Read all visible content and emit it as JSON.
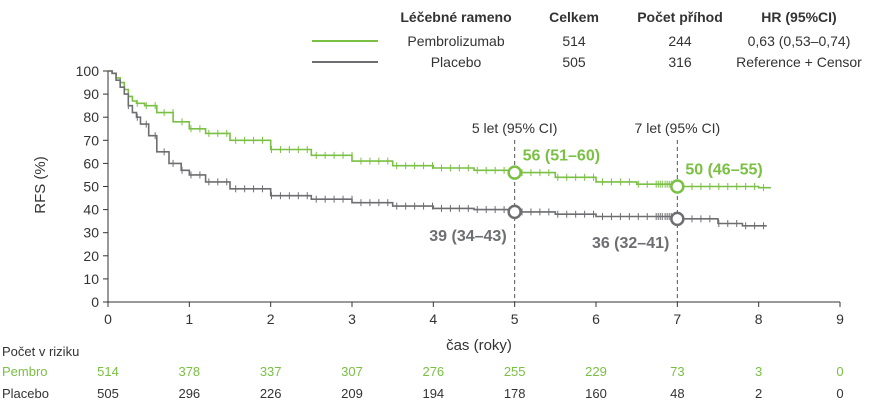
{
  "chart_data": {
    "type": "line",
    "subtype": "kaplan-meier",
    "ylabel": "RFS (%)",
    "xlabel": "čas (roky)",
    "xlim": [
      0,
      9
    ],
    "ylim": [
      0,
      100
    ],
    "xticks": [
      0,
      1,
      2,
      3,
      4,
      5,
      6,
      7,
      8,
      9
    ],
    "yticks": [
      0,
      10,
      20,
      30,
      40,
      50,
      60,
      70,
      80,
      90,
      100
    ],
    "colors": {
      "pembro": "#7ac043",
      "placebo": "#6d6e71",
      "axis": "#333333"
    },
    "legend": {
      "headers": [
        "Léčebné rameno",
        "Celkem",
        "Počet příhod",
        "HR (95%CI)"
      ],
      "rows": [
        {
          "arm": "Pembrolizumab",
          "total": "514",
          "events": "244",
          "hr": "0,63 (0,53–0,74)"
        },
        {
          "arm": "Placebo",
          "total": "505",
          "events": "316",
          "hr": "Reference + Censor"
        }
      ]
    },
    "series": [
      {
        "name": "Pembrolizumab",
        "x": [
          0,
          0.05,
          0.1,
          0.15,
          0.2,
          0.25,
          0.3,
          0.35,
          0.45,
          0.6,
          0.8,
          1.0,
          1.2,
          1.5,
          2.0,
          2.5,
          3.0,
          3.5,
          4.0,
          4.5,
          5.0,
          5.5,
          6.0,
          6.5,
          7.0,
          7.5,
          8.0,
          8.15
        ],
        "y": [
          100,
          99,
          97,
          95,
          92,
          89,
          87,
          86,
          85,
          82,
          78,
          75,
          73,
          70,
          66,
          63.5,
          61,
          59,
          58,
          57,
          56,
          54,
          52,
          51,
          50,
          50,
          49.5,
          49.5
        ]
      },
      {
        "name": "Placebo",
        "x": [
          0,
          0.05,
          0.1,
          0.15,
          0.2,
          0.25,
          0.3,
          0.35,
          0.4,
          0.5,
          0.6,
          0.75,
          0.9,
          1.0,
          1.2,
          1.5,
          2.0,
          2.5,
          3.0,
          3.5,
          4.0,
          4.5,
          5.0,
          5.5,
          6.0,
          6.5,
          7.0,
          7.5,
          7.8,
          8.1
        ],
        "y": [
          100,
          99,
          96,
          93,
          90,
          85,
          82,
          80,
          77,
          72,
          65,
          60,
          57,
          55,
          52,
          49,
          46,
          44.5,
          43,
          41.5,
          40.5,
          40,
          39,
          38,
          37,
          37,
          36,
          34,
          33,
          33
        ]
      }
    ],
    "annotations": [
      {
        "x": 5,
        "label": "5 let (95% CI)"
      },
      {
        "x": 7,
        "label": "7 let (95% CI)"
      }
    ],
    "points": [
      {
        "series": "Pembrolizumab",
        "x": 5,
        "y": 56,
        "label": "56 (51–60)"
      },
      {
        "series": "Pembrolizumab",
        "x": 7,
        "y": 50,
        "label": "50 (46–55)"
      },
      {
        "series": "Placebo",
        "x": 5,
        "y": 39,
        "label": "39 (34–43)"
      },
      {
        "series": "Placebo",
        "x": 7,
        "y": 36,
        "label": "36 (32–41)"
      }
    ],
    "risk_table": {
      "title": "Počet v riziku",
      "rows": [
        {
          "name": "Pembro",
          "values": [
            514,
            378,
            337,
            307,
            276,
            255,
            229,
            73,
            3,
            0
          ]
        },
        {
          "name": "Placebo",
          "values": [
            505,
            296,
            226,
            209,
            194,
            178,
            160,
            48,
            2,
            0
          ]
        }
      ]
    }
  }
}
